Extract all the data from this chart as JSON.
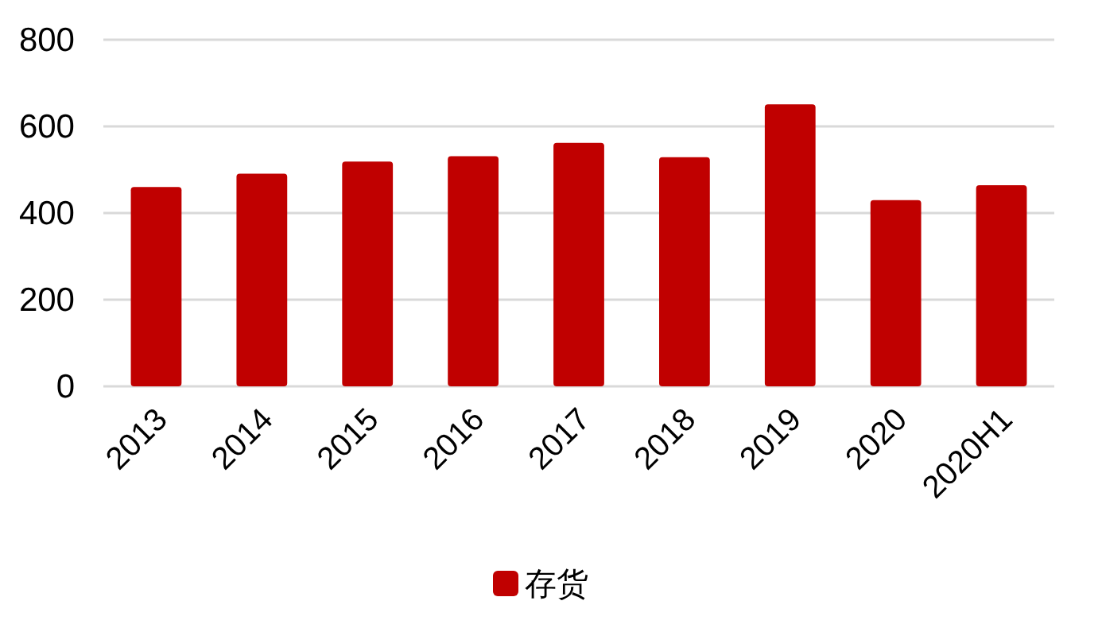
{
  "chart_data": {
    "type": "bar",
    "categories": [
      "2013",
      "2014",
      "2015",
      "2016",
      "2017",
      "2018",
      "2019",
      "2020",
      "2020H1"
    ],
    "series": [
      {
        "name": "存货",
        "color": "#c00000",
        "values": [
          460,
          491,
          519,
          531,
          562,
          529,
          651,
          430,
          464
        ]
      }
    ],
    "ylim": [
      0,
      800
    ],
    "yticks": [
      0,
      200,
      400,
      600,
      800
    ],
    "grid": "y",
    "legend": "bottom"
  }
}
